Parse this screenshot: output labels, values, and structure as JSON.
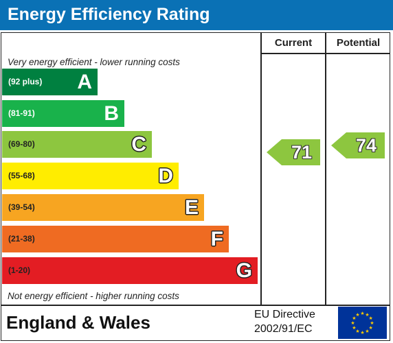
{
  "header": {
    "title": "Energy Efficiency Rating"
  },
  "columns": {
    "current": "Current",
    "potential": "Potential"
  },
  "captions": {
    "top": "Very energy efficient - lower running costs",
    "bottom": "Not energy efficient - higher running costs"
  },
  "bands": [
    {
      "range": "(92 plus)",
      "letter": "A",
      "color": "#008040",
      "range_color": "#ffffff"
    },
    {
      "range": "(81-91)",
      "letter": "B",
      "color": "#19b24b",
      "range_color": "#ffffff"
    },
    {
      "range": "(69-80)",
      "letter": "C",
      "color": "#8dc63f",
      "range_color": "#222222"
    },
    {
      "range": "(55-68)",
      "letter": "D",
      "color": "#ffed00",
      "range_color": "#222222"
    },
    {
      "range": "(39-54)",
      "letter": "E",
      "color": "#f7a521",
      "range_color": "#222222"
    },
    {
      "range": "(21-38)",
      "letter": "F",
      "color": "#ef6b22",
      "range_color": "#222222"
    },
    {
      "range": "(1-20)",
      "letter": "G",
      "color": "#e31d23",
      "range_color": "#222222"
    }
  ],
  "ratings": {
    "current": {
      "value": "71",
      "color": "#8dc63f"
    },
    "potential": {
      "value": "74",
      "color": "#8dc63f"
    }
  },
  "footer": {
    "country": "England & Wales",
    "directive_line1": "EU Directive",
    "directive_line2": "2002/91/EC",
    "flag_icon": "eu-flag-icon",
    "flag_color": "#003399",
    "star_color": "#ffcc00"
  }
}
